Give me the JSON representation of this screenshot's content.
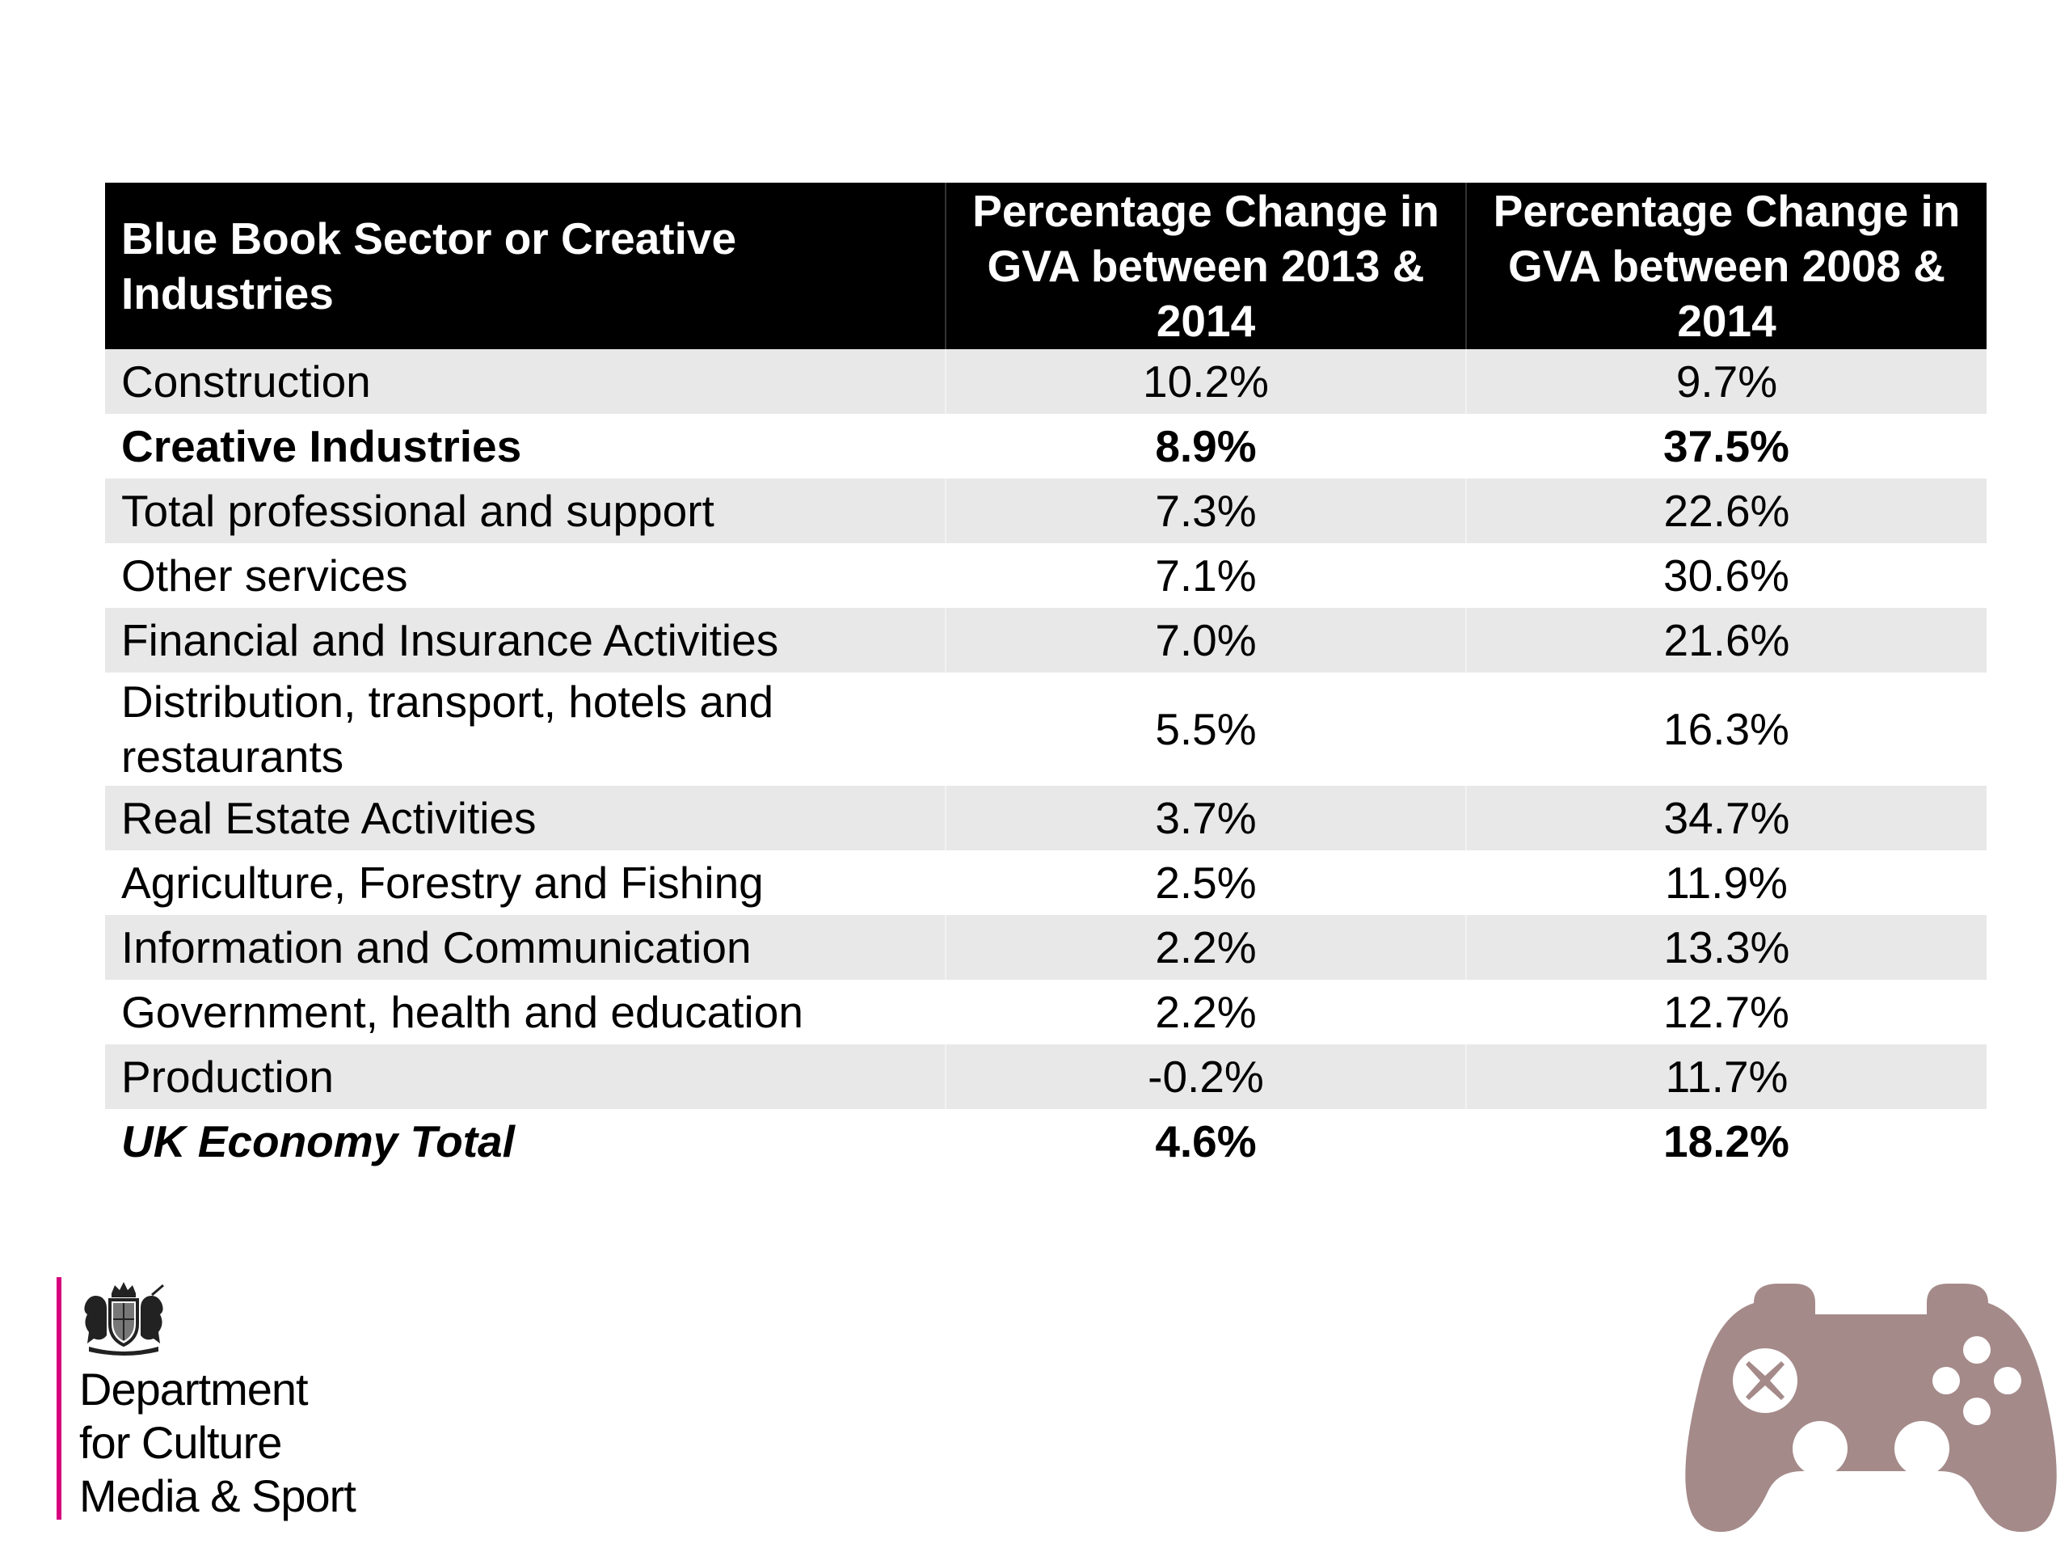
{
  "table": {
    "headers": [
      "Blue Book Sector or Creative Industries",
      "Percentage Change in GVA between 2013 & 2014",
      "Percentage Change in GVA between 2008 & 2014"
    ],
    "rows": [
      {
        "sector": "Construction",
        "change_2013_2014": "10.2%",
        "change_2008_2014": "9.7%"
      },
      {
        "sector": "Creative Industries",
        "change_2013_2014": "8.9%",
        "change_2008_2014": "37.5%"
      },
      {
        "sector": "Total professional and support",
        "change_2013_2014": "7.3%",
        "change_2008_2014": "22.6%"
      },
      {
        "sector": "Other services",
        "change_2013_2014": "7.1%",
        "change_2008_2014": "30.6%"
      },
      {
        "sector": "Financial and Insurance Activities",
        "change_2013_2014": "7.0%",
        "change_2008_2014": "21.6%"
      },
      {
        "sector": "Distribution, transport, hotels and restaurants",
        "change_2013_2014": "5.5%",
        "change_2008_2014": "16.3%"
      },
      {
        "sector": "Real Estate Activities",
        "change_2013_2014": "3.7%",
        "change_2008_2014": "34.7%"
      },
      {
        "sector": "Agriculture, Forestry and Fishing",
        "change_2013_2014": "2.5%",
        "change_2008_2014": "11.9%"
      },
      {
        "sector": "Information and Communication",
        "change_2013_2014": "2.2%",
        "change_2008_2014": "13.3%"
      },
      {
        "sector": "Government, health and education",
        "change_2013_2014": "2.2%",
        "change_2008_2014": "12.7%"
      },
      {
        "sector": "Production",
        "change_2013_2014": "-0.2%",
        "change_2008_2014": "11.7%"
      },
      {
        "sector": "UK Economy Total",
        "change_2013_2014": "4.6%",
        "change_2008_2014": "18.2%"
      }
    ]
  },
  "logo": {
    "lines": [
      "Department",
      "for Culture",
      "Media & Sport"
    ],
    "accent_color": "#d6007e"
  },
  "icons": {
    "crest": "royal-coat-of-arms-icon",
    "gamepad": "gamepad-icon",
    "gamepad_color": "#a58a8a"
  }
}
